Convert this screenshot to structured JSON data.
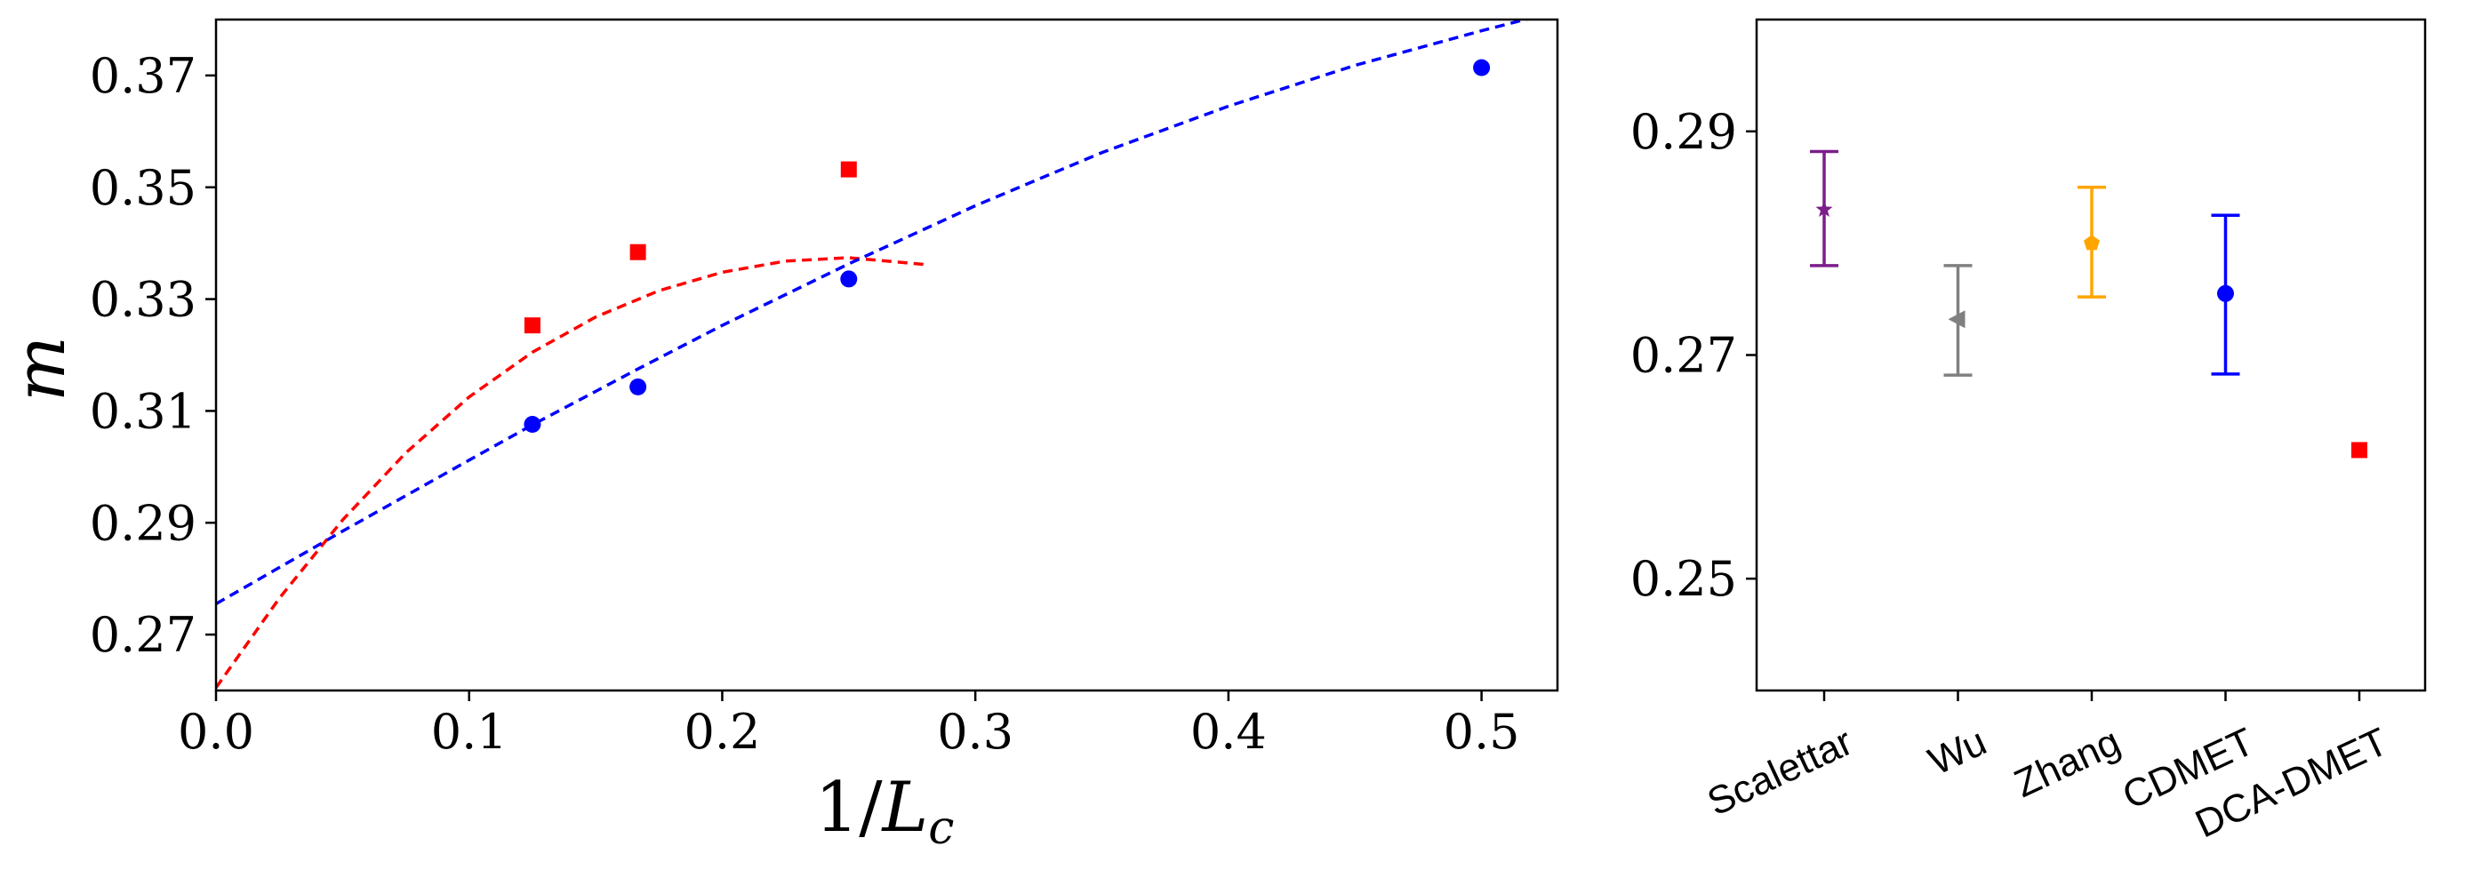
{
  "chart_data": [
    {
      "type": "scatter",
      "xlabel": "1/L_c",
      "ylabel": "m",
      "xlim": [
        0.0,
        0.53
      ],
      "ylim": [
        0.26,
        0.38
      ],
      "xticks": [
        0.0,
        0.1,
        0.2,
        0.3,
        0.4,
        0.5
      ],
      "xtick_labels": [
        "0.0",
        "0.1",
        "0.2",
        "0.3",
        "0.4",
        "0.5"
      ],
      "yticks": [
        0.27,
        0.29,
        0.31,
        0.33,
        0.35,
        0.37
      ],
      "ytick_labels": [
        "0.27",
        "0.29",
        "0.31",
        "0.33",
        "0.35",
        "0.37"
      ],
      "grid": false,
      "series": [
        {
          "marker": "square",
          "color": "#ff0000",
          "x": [
            0.125,
            0.1667,
            0.25
          ],
          "y": [
            0.3253,
            0.3384,
            0.3532
          ],
          "fit": {
            "style": "dashed",
            "x": [
              0.0,
              0.025,
              0.05,
              0.075,
              0.1,
              0.125,
              0.15,
              0.175,
              0.2,
              0.225,
              0.25,
              0.28
            ],
            "y": [
              0.2605,
              0.2765,
              0.2905,
              0.3025,
              0.3125,
              0.3205,
              0.3268,
              0.3315,
              0.3348,
              0.3368,
              0.3374,
              0.3362
            ]
          }
        },
        {
          "marker": "circle",
          "color": "#0000ff",
          "x": [
            0.125,
            0.1667,
            0.25,
            0.5
          ],
          "y": [
            0.3076,
            0.3143,
            0.3336,
            0.3714
          ],
          "fit": {
            "style": "dashed",
            "x": [
              0.0,
              0.05,
              0.1,
              0.125,
              0.1667,
              0.2,
              0.25,
              0.3,
              0.35,
              0.4,
              0.45,
              0.5,
              0.53
            ],
            "y": [
              0.2755,
              0.2885,
              0.3012,
              0.3075,
              0.3175,
              0.3253,
              0.3363,
              0.3467,
              0.3562,
              0.3645,
              0.3718,
              0.378,
              0.3815
            ]
          }
        }
      ]
    },
    {
      "type": "scatter",
      "ylim": [
        0.24,
        0.3
      ],
      "yticks": [
        0.25,
        0.27,
        0.29
      ],
      "ytick_labels": [
        "0.25",
        "0.27",
        "0.29"
      ],
      "grid": false,
      "categories": [
        "Scalettar",
        "Wu",
        "Zhang",
        "CDMET",
        "DCA-DMET"
      ],
      "points": [
        {
          "value": 0.283,
          "err_low": 0.278,
          "err_high": 0.2882,
          "marker": "star",
          "color": "#7b1f8a"
        },
        {
          "value": 0.2732,
          "err_low": 0.2682,
          "err_high": 0.278,
          "marker": "triangle-left",
          "color": "#808080"
        },
        {
          "value": 0.28,
          "err_low": 0.2752,
          "err_high": 0.285,
          "marker": "pentagon",
          "color": "#ffa500"
        },
        {
          "value": 0.2755,
          "err_low": 0.2683,
          "err_high": 0.2825,
          "marker": "circle",
          "color": "#0000ff"
        },
        {
          "value": 0.2615,
          "marker": "square",
          "color": "#ff0000"
        }
      ]
    }
  ]
}
